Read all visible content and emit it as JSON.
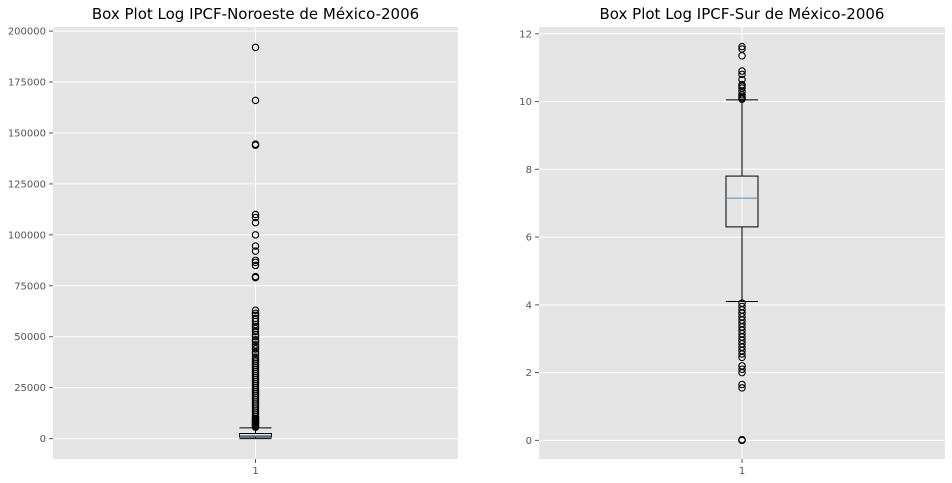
{
  "style": {
    "plot_background": "#e5e5e5",
    "grid_color": "#ffffff",
    "box_color": "#000000",
    "median_color": "#4f8bc0",
    "tick_label_color": "#555555"
  },
  "chart_data": [
    {
      "type": "box",
      "title": "Box Plot Log IPCF-Noroeste de México-2006",
      "xlabel": "",
      "ylabel": "",
      "grid": true,
      "categories": [
        "1"
      ],
      "ylim": [
        -10000,
        202000
      ],
      "yticks": [
        0,
        25000,
        50000,
        75000,
        100000,
        125000,
        150000,
        175000,
        200000
      ],
      "ytick_labels": [
        "0",
        "25000",
        "50000",
        "75000",
        "100000",
        "125000",
        "150000",
        "175000",
        "200000"
      ],
      "box": {
        "whisker_low": 0,
        "q1": 800,
        "median": 1500,
        "q3": 2500,
        "whisker_high": 5300
      },
      "outliers": [
        192000,
        166000,
        144500,
        144000,
        110000,
        108500,
        106000,
        100000,
        94500,
        92000,
        87500,
        86500,
        85000,
        79500,
        79000,
        63000,
        61500,
        60500,
        59000,
        57500,
        56000,
        55000,
        54000,
        52500,
        51000,
        50000,
        48500,
        47500,
        46000,
        45000,
        44000,
        42500,
        41500,
        40000,
        39000,
        38000,
        37000,
        36000,
        35000,
        34000,
        33000,
        32000,
        31000,
        30000,
        29000,
        28000,
        27000,
        26000,
        25000,
        24000,
        23000,
        22000,
        21000,
        20000,
        19000,
        18000,
        17000,
        16000,
        15000,
        14000,
        13000,
        12000,
        11000,
        10000,
        9500,
        9000,
        8500,
        8000,
        7500,
        7000,
        6500,
        6000,
        5600
      ]
    },
    {
      "type": "box",
      "title": "Box Plot Log IPCF-Sur de México-2006",
      "xlabel": "",
      "ylabel": "",
      "grid": true,
      "categories": [
        "1"
      ],
      "ylim": [
        -0.55,
        12.2
      ],
      "yticks": [
        0,
        2,
        4,
        6,
        8,
        10,
        12
      ],
      "ytick_labels": [
        "0",
        "2",
        "4",
        "6",
        "8",
        "10",
        "12"
      ],
      "box": {
        "whisker_low": 4.1,
        "q1": 6.3,
        "median": 7.15,
        "q3": 7.8,
        "whisker_high": 10.05
      },
      "outliers": [
        11.62,
        11.55,
        11.35,
        10.9,
        10.8,
        10.65,
        10.5,
        10.45,
        10.4,
        10.3,
        10.2,
        10.15,
        10.1,
        10.07,
        4.05,
        3.95,
        3.85,
        3.75,
        3.65,
        3.55,
        3.45,
        3.35,
        3.25,
        3.15,
        3.05,
        2.95,
        2.85,
        2.75,
        2.65,
        2.55,
        2.45,
        2.2,
        2.1,
        2.0,
        1.65,
        1.55,
        0.02,
        0.0
      ]
    }
  ]
}
